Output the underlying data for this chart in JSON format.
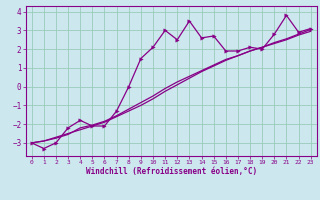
{
  "xlabel": "Windchill (Refroidissement éolien,°C)",
  "bg_color": "#cce8ee",
  "line_color": "#880088",
  "grid_color": "#99ccbb",
  "spine_color": "#880088",
  "x_data": [
    0,
    1,
    2,
    3,
    4,
    5,
    6,
    7,
    8,
    9,
    10,
    11,
    12,
    13,
    14,
    15,
    16,
    17,
    18,
    19,
    20,
    21,
    22,
    23
  ],
  "y_zigzag": [
    -3.0,
    -3.3,
    -3.0,
    -2.2,
    -1.8,
    -2.1,
    -2.1,
    -1.3,
    0.0,
    1.5,
    2.1,
    3.0,
    2.5,
    3.5,
    2.6,
    2.7,
    1.9,
    1.9,
    2.1,
    2.0,
    2.8,
    3.8,
    2.9,
    3.1
  ],
  "y_line1": [
    -3.0,
    -2.9,
    -2.75,
    -2.55,
    -2.2,
    -2.05,
    -1.85,
    -1.55,
    -1.2,
    -0.85,
    -0.5,
    -0.1,
    0.25,
    0.55,
    0.85,
    1.15,
    1.45,
    1.65,
    1.9,
    2.1,
    2.3,
    2.5,
    2.75,
    2.95
  ],
  "y_line2": [
    -3.0,
    -2.9,
    -2.7,
    -2.5,
    -2.3,
    -2.1,
    -1.9,
    -1.6,
    -1.3,
    -1.0,
    -0.65,
    -0.25,
    0.1,
    0.45,
    0.8,
    1.1,
    1.4,
    1.65,
    1.9,
    2.1,
    2.35,
    2.55,
    2.8,
    3.05
  ],
  "ylim": [
    -3.7,
    4.3
  ],
  "yticks": [
    -3,
    -2,
    -1,
    0,
    1,
    2,
    3,
    4
  ],
  "xlim": [
    -0.5,
    23.5
  ],
  "xticks": [
    0,
    1,
    2,
    3,
    4,
    5,
    6,
    7,
    8,
    9,
    10,
    11,
    12,
    13,
    14,
    15,
    16,
    17,
    18,
    19,
    20,
    21,
    22,
    23
  ],
  "xlabel_fontsize": 5.5,
  "ytick_fontsize": 5.5,
  "xtick_fontsize": 4.5
}
